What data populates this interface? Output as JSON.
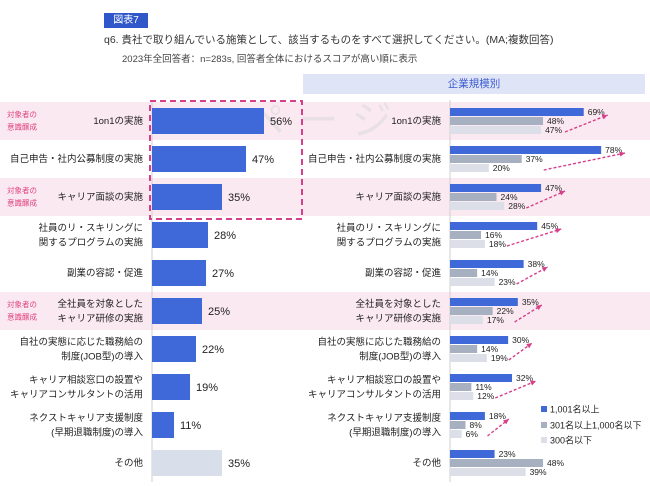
{
  "header": {
    "figure_label": "図表7",
    "question": "q6. 貴社で取り組んでいる施策として、該当するものをすべて選択してください。(MA;複数回答)",
    "note": "2023年全回答者：n=283s, 回答者全体におけるスコアが高い順に表示",
    "segment_header": "企業規模別"
  },
  "watermark": "ページ",
  "tag_text": [
    "対象者の",
    "意識醸成"
  ],
  "colors": {
    "main_bar": "#3f68d8",
    "other_bar": "#d9dfea",
    "series_large": "#3f68d8",
    "series_mid": "#a7b0c0",
    "series_small": "#dcdfe7",
    "highlight_row": "#fbe9f2",
    "tag_text": "#e0437d",
    "dashed_box": "#d6408a",
    "arrow": "#d6408a"
  },
  "chart_data": [
    {
      "type": "bar",
      "orientation": "horizontal",
      "categories": [
        "1on1の実施",
        "自己申告・社内公募制度の実施",
        "キャリア面談の実施",
        "社員のリ・スキリングに\n関するプログラムの実施",
        "副業の容認・促進",
        "全社員を対象とした\nキャリア研修の実施",
        "自社の実態に応じた職務給の\n制度(JOB型)の導入",
        "キャリア相談窓口の設置や\nキャリアコンサルタントの活用",
        "ネクストキャリア支援制度\n(早期退職制度)の導入",
        "その他"
      ],
      "values": [
        56,
        47,
        35,
        28,
        27,
        25,
        22,
        19,
        11,
        35
      ],
      "labels": [
        "56%",
        "47%",
        "35%",
        "28%",
        "27%",
        "25%",
        "22%",
        "19%",
        "11%",
        "35%"
      ],
      "tagged_rows": [
        0,
        2,
        5
      ]
    },
    {
      "type": "bar",
      "orientation": "horizontal",
      "categories": [
        "1on1の実施",
        "自己申告・社内公募制度の実施",
        "キャリア面談の実施",
        "社員のリ・スキリングに\n関するプログラムの実施",
        "副業の容認・促進",
        "全社員を対象とした\nキャリア研修の実施",
        "自社の実態に応じた職務給の\n制度(JOB型)の導入",
        "キャリア相談窓口の設置や\nキャリアコンサルタントの活用",
        "ネクストキャリア支援制度\n(早期退職制度)の導入",
        "その他"
      ],
      "series": [
        {
          "name": "1,001名以上",
          "values": [
            69,
            78,
            47,
            45,
            38,
            35,
            30,
            32,
            18,
            23
          ]
        },
        {
          "name": "301名以上1,000名以下",
          "values": [
            48,
            37,
            24,
            16,
            14,
            22,
            14,
            11,
            8,
            48
          ]
        },
        {
          "name": "300名以下",
          "values": [
            47,
            20,
            28,
            18,
            23,
            17,
            19,
            12,
            6,
            39
          ]
        }
      ],
      "legend": "bottom-right"
    }
  ]
}
